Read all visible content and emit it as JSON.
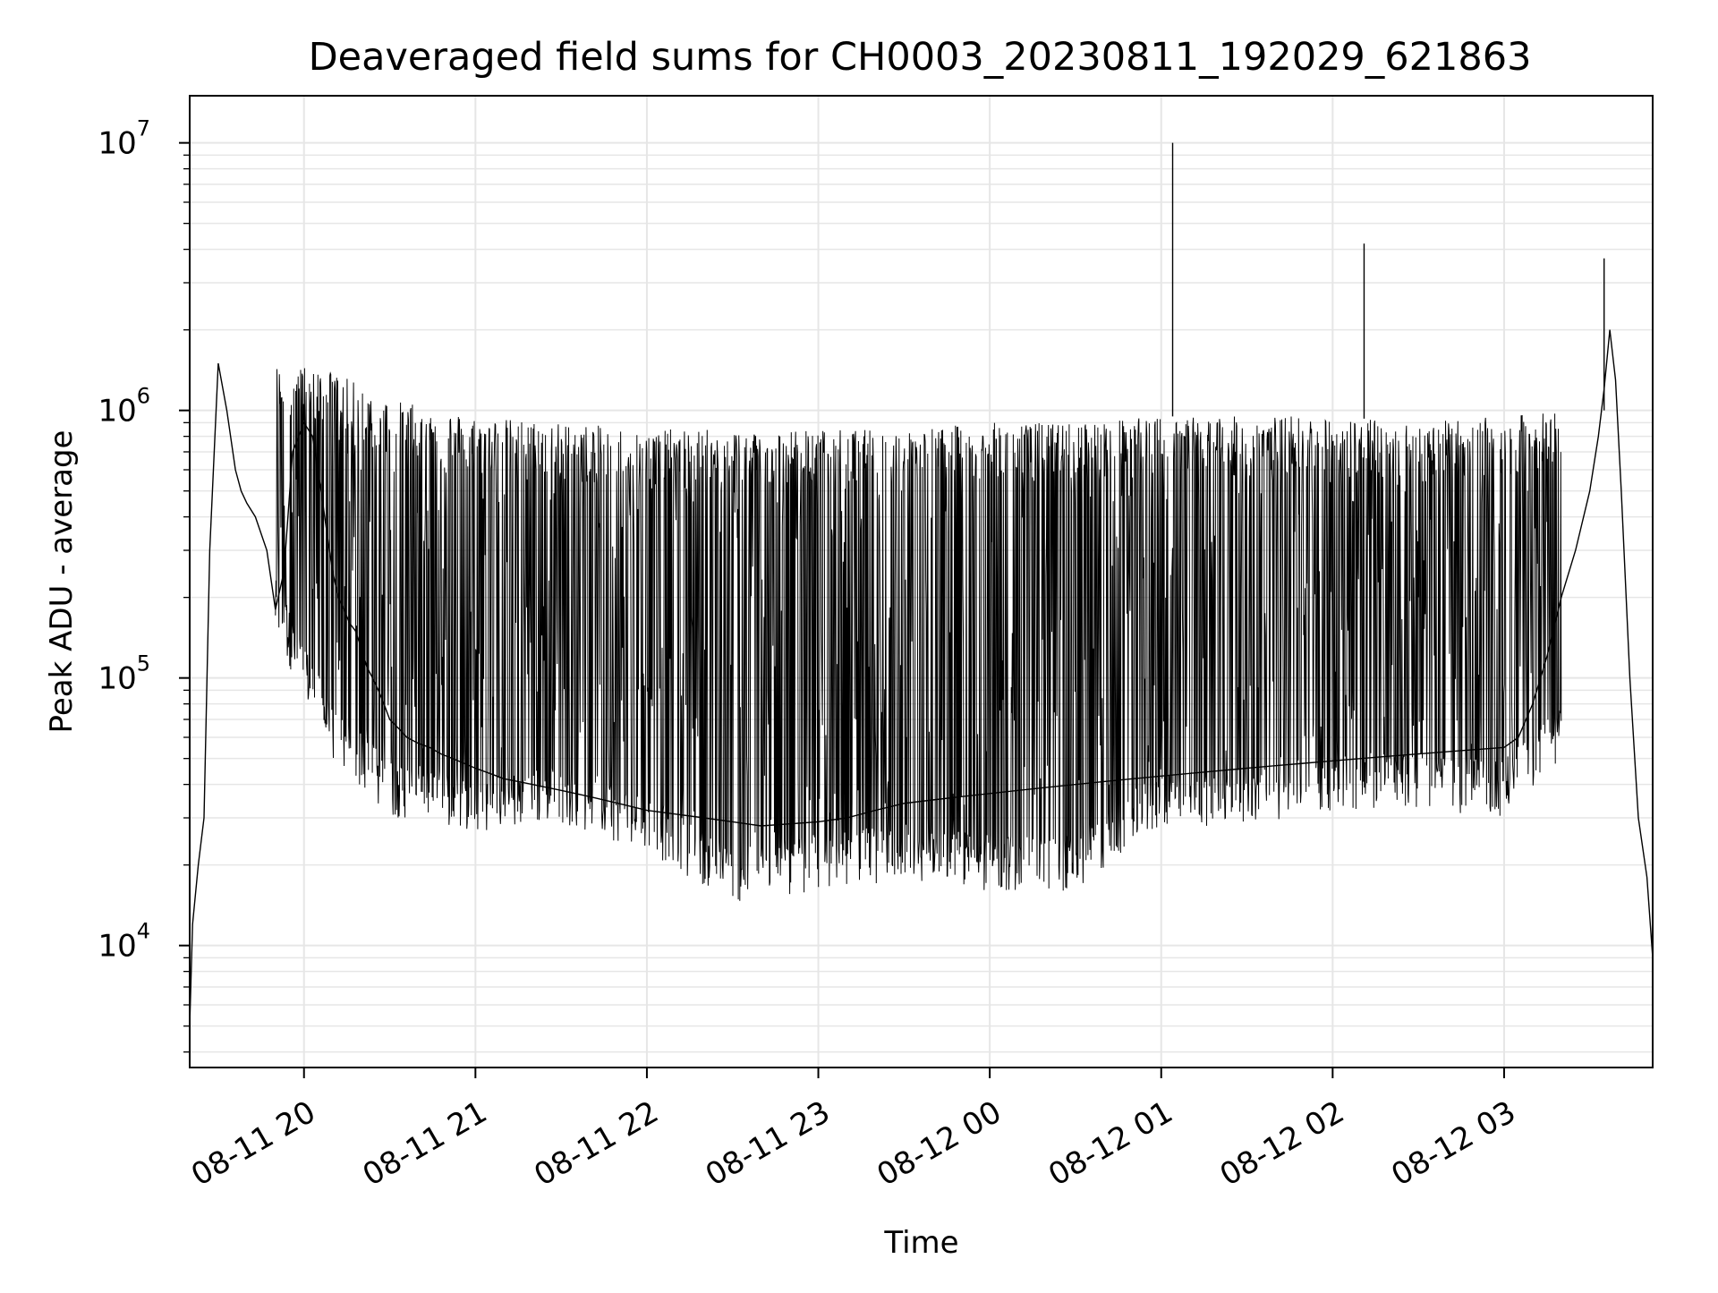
{
  "chart_data": {
    "type": "line",
    "title": "Deaveraged field sums for CH0003_20230811_192029_621863",
    "xlabel": "Time",
    "ylabel": "Peak ADU - average",
    "y_scale": "log",
    "ylim": [
      3500,
      15000000
    ],
    "y_ticks": [
      {
        "value": 10000,
        "base": "10",
        "exp": "4"
      },
      {
        "value": 100000,
        "base": "10",
        "exp": "5"
      },
      {
        "value": 1000000,
        "base": "10",
        "exp": "6"
      },
      {
        "value": 10000000,
        "base": "10",
        "exp": "7"
      }
    ],
    "xlim": [
      "2023-08-11T19:20:00",
      "2023-08-12T03:52:00"
    ],
    "x_ticks": [
      {
        "value": "2023-08-11T20:00:00",
        "label": "08-11 20"
      },
      {
        "value": "2023-08-11T21:00:00",
        "label": "08-11 21"
      },
      {
        "value": "2023-08-11T22:00:00",
        "label": "08-11 22"
      },
      {
        "value": "2023-08-11T23:00:00",
        "label": "08-11 23"
      },
      {
        "value": "2023-08-12T00:00:00",
        "label": "08-12 00"
      },
      {
        "value": "2023-08-12T01:00:00",
        "label": "08-12 01"
      },
      {
        "value": "2023-08-12T02:00:00",
        "label": "08-12 02"
      },
      {
        "value": "2023-08-12T03:00:00",
        "label": "08-12 03"
      }
    ],
    "grid": true,
    "line_color": "#000000",
    "grid_color": "#e6e6e6",
    "series": [
      {
        "x": [
          "2023-08-11T19:20:00",
          "2023-08-11T19:21:00",
          "2023-08-11T19:23:00",
          "2023-08-11T19:25:00",
          "2023-08-11T19:27:00",
          "2023-08-11T19:30:00",
          "2023-08-11T19:33:00",
          "2023-08-11T19:36:00",
          "2023-08-11T19:38:00",
          "2023-08-11T19:40:00",
          "2023-08-11T19:43:00",
          "2023-08-11T19:47:00",
          "2023-08-11T19:50:00",
          "2023-08-11T19:53:00",
          "2023-08-11T19:56:00",
          "2023-08-11T20:00:00",
          "2023-08-11T20:03:00",
          "2023-08-11T20:06:00",
          "2023-08-11T20:08:00",
          "2023-08-11T20:10:00",
          "2023-08-11T20:12:00",
          "2023-08-11T20:14:00",
          "2023-08-11T20:16:00",
          "2023-08-11T20:18:00",
          "2023-08-11T20:20:00",
          "2023-08-11T20:22:00",
          "2023-08-11T20:24:00",
          "2023-08-11T20:26:00",
          "2023-08-11T20:28:00",
          "2023-08-11T20:30:00",
          "2023-08-11T20:33:00",
          "2023-08-11T20:36:00",
          "2023-08-11T20:40:00",
          "2023-08-11T20:44:00",
          "2023-08-11T20:48:00",
          "2023-08-11T20:52:00",
          "2023-08-11T20:56:00",
          "2023-08-11T21:00:00",
          "2023-08-11T21:05:00",
          "2023-08-11T21:10:00",
          "2023-08-11T21:15:00",
          "2023-08-11T21:20:00",
          "2023-08-11T21:30:00",
          "2023-08-11T21:40:00",
          "2023-08-11T21:50:00",
          "2023-08-11T22:00:00",
          "2023-08-11T22:10:00",
          "2023-08-11T22:20:00",
          "2023-08-11T22:30:00",
          "2023-08-11T22:40:00",
          "2023-08-11T22:50:00",
          "2023-08-11T23:00:00",
          "2023-08-11T23:10:00",
          "2023-08-11T23:20:00",
          "2023-08-11T23:30:00",
          "2023-08-11T23:40:00",
          "2023-08-11T23:50:00",
          "2023-08-12T00:00:00",
          "2023-08-12T00:10:00",
          "2023-08-12T00:20:00",
          "2023-08-12T00:30:00",
          "2023-08-12T00:40:00",
          "2023-08-12T00:50:00",
          "2023-08-12T01:00:00",
          "2023-08-12T01:10:00",
          "2023-08-12T01:20:00",
          "2023-08-12T01:30:00",
          "2023-08-12T01:40:00",
          "2023-08-12T01:50:00",
          "2023-08-12T02:00:00",
          "2023-08-12T02:10:00",
          "2023-08-12T02:20:00",
          "2023-08-12T02:30:00",
          "2023-08-12T02:40:00",
          "2023-08-12T02:50:00",
          "2023-08-12T03:00:00",
          "2023-08-12T03:05:00",
          "2023-08-12T03:10:00",
          "2023-08-12T03:15:00",
          "2023-08-12T03:20:00",
          "2023-08-12T03:25:00",
          "2023-08-12T03:30:00",
          "2023-08-12T03:33:00",
          "2023-08-12T03:35:00",
          "2023-08-12T03:37:00",
          "2023-08-12T03:39:00",
          "2023-08-12T03:41:00",
          "2023-08-12T03:44:00",
          "2023-08-12T03:47:00",
          "2023-08-12T03:50:00",
          "2023-08-12T03:52:00"
        ],
        "y": [
          5000,
          12000,
          20000,
          30000,
          300000,
          1500000,
          1000000,
          600000,
          500000,
          450000,
          400000,
          300000,
          180000,
          250000,
          700000,
          900000,
          800000,
          500000,
          350000,
          250000,
          200000,
          180000,
          160000,
          150000,
          130000,
          110000,
          100000,
          90000,
          80000,
          70000,
          65000,
          60000,
          57000,
          55000,
          52000,
          50000,
          48000,
          46000,
          44000,
          42000,
          41000,
          40000,
          38000,
          36000,
          34000,
          32000,
          31000,
          30000,
          29000,
          28000,
          28500,
          29000,
          30000,
          32000,
          34000,
          35000,
          36000,
          37000,
          38000,
          39000,
          40000,
          41000,
          42000,
          43000,
          44000,
          45000,
          46000,
          47000,
          48000,
          49000,
          50000,
          51000,
          52000,
          53000,
          54000,
          55000,
          60000,
          80000,
          120000,
          200000,
          300000,
          500000,
          800000,
          1200000,
          2000000,
          1300000,
          500000,
          100000,
          30000,
          18000,
          9000
        ],
        "spike_envelope": {
          "x": [
            "2023-08-11T19:50:00",
            "2023-08-11T20:10:00",
            "2023-08-11T20:30:00",
            "2023-08-11T21:00:00",
            "2023-08-11T21:30:00",
            "2023-08-11T22:00:00",
            "2023-08-11T22:30:00",
            "2023-08-11T23:00:00",
            "2023-08-11T23:30:00",
            "2023-08-12T00:00:00",
            "2023-08-12T00:30:00",
            "2023-08-12T01:00:00",
            "2023-08-12T01:30:00",
            "2023-08-12T02:00:00",
            "2023-08-12T02:30:00",
            "2023-08-12T03:00:00",
            "2023-08-12T03:20:00"
          ],
          "y_high": [
            1500000,
            1400000,
            1100000,
            950000,
            900000,
            850000,
            850000,
            850000,
            850000,
            900000,
            900000,
            950000,
            950000,
            950000,
            900000,
            950000,
            1000000
          ],
          "y_low": [
            180000,
            60000,
            38000,
            33000,
            36000,
            28000,
            18000,
            20000,
            22000,
            20000,
            20000,
            35000,
            35000,
            40000,
            40000,
            38000,
            60000
          ]
        },
        "notable_peaks": [
          {
            "x": "2023-08-12T01:04:00",
            "y": 10000000
          },
          {
            "x": "2023-08-12T02:11:00",
            "y": 4200000
          },
          {
            "x": "2023-08-12T03:35:00",
            "y": 3700000
          }
        ]
      }
    ]
  }
}
